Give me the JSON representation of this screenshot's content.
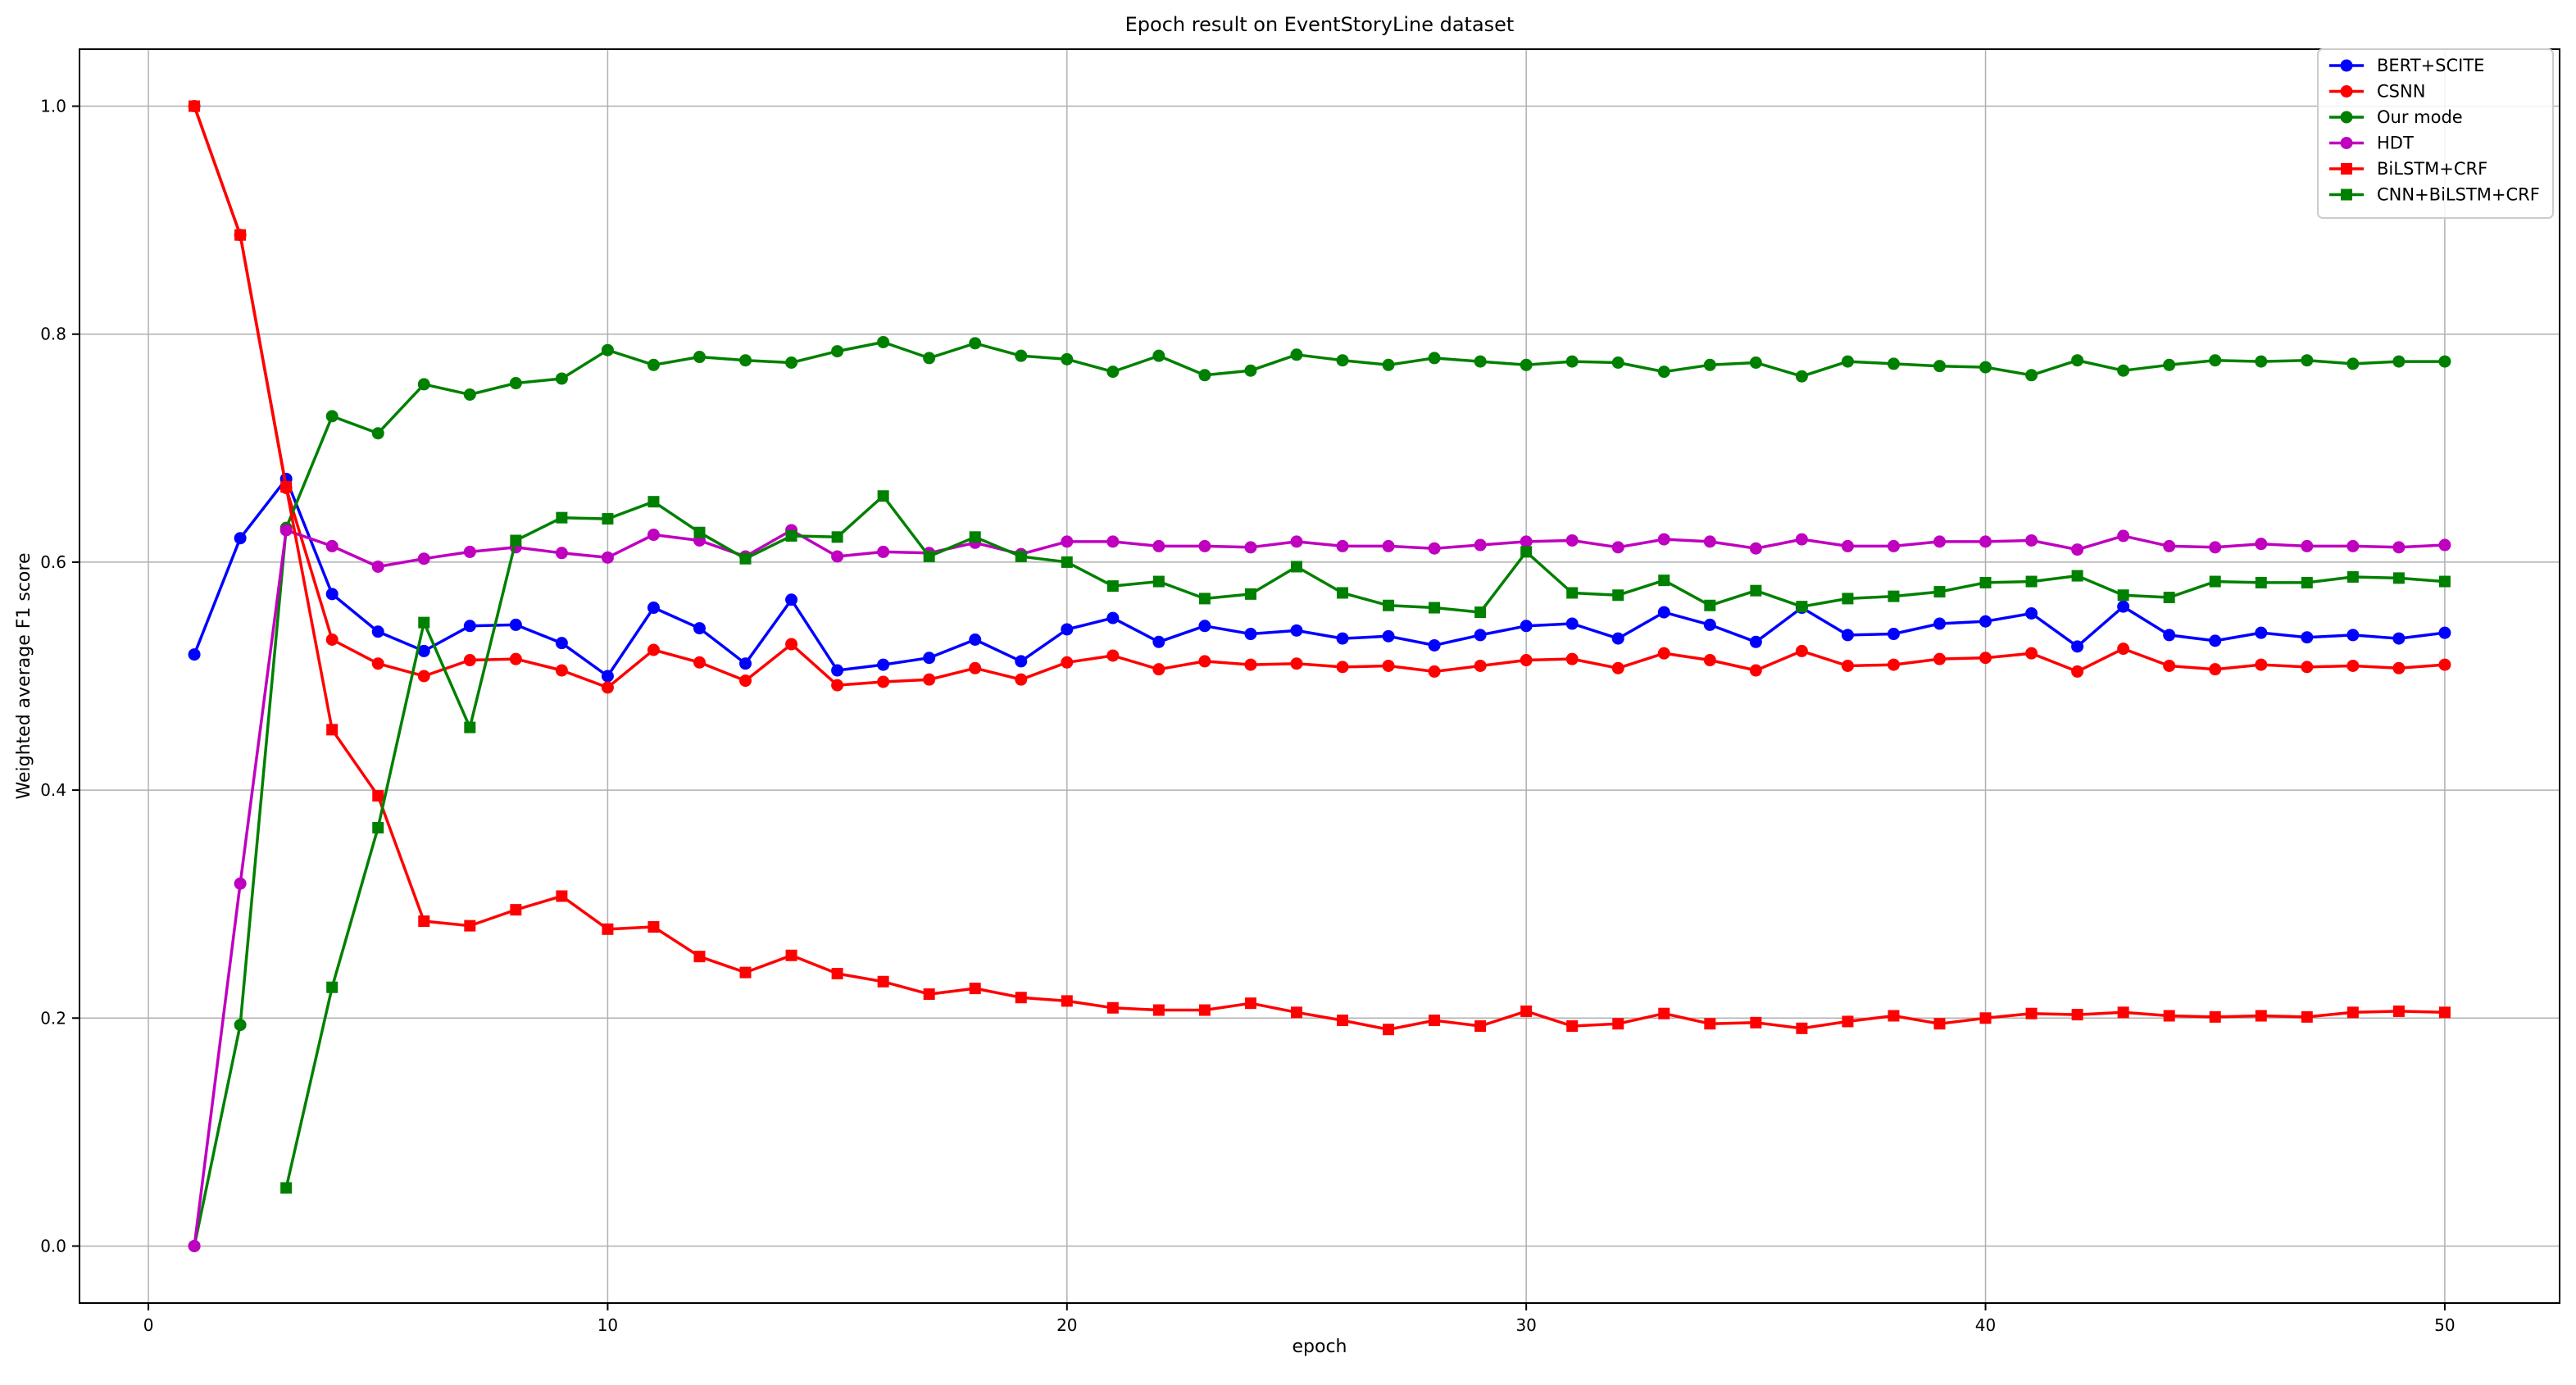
{
  "chart_data": {
    "type": "line",
    "title": "Epoch result on EventStoryLine dataset",
    "xlabel": "epoch",
    "ylabel": "Weighted average F1 score",
    "xlim": [
      -1.5,
      52.5
    ],
    "ylim": [
      -0.05,
      1.05
    ],
    "xticks": [
      0,
      10,
      20,
      30,
      40,
      50
    ],
    "yticks": [
      0.0,
      0.2,
      0.4,
      0.6,
      0.8,
      1.0
    ],
    "xtick_labels": [
      "0",
      "10",
      "20",
      "30",
      "40",
      "50"
    ],
    "ytick_labels": [
      "0.0",
      "0.2",
      "0.4",
      "0.6",
      "0.8",
      "1.0"
    ],
    "grid": true,
    "legend_position": "top-right",
    "series": [
      {
        "name": "BERT+SCITE",
        "color": "#0000ff",
        "marker": "circle",
        "x_start": 1,
        "values": [
          0.519,
          0.621,
          0.673,
          0.572,
          0.539,
          0.522,
          0.544,
          0.545,
          0.529,
          0.5,
          0.56,
          0.542,
          0.511,
          0.567,
          0.505,
          0.51,
          0.516,
          0.532,
          0.513,
          0.541,
          0.551,
          0.53,
          0.544,
          0.537,
          0.54,
          0.533,
          0.535,
          0.527,
          0.536,
          0.544,
          0.546,
          0.533,
          0.556,
          0.545,
          0.53,
          0.56,
          0.536,
          0.537,
          0.546,
          0.548,
          0.555,
          0.526,
          0.561,
          0.536,
          0.531,
          0.538,
          0.534,
          0.536,
          0.533,
          0.538
        ]
      },
      {
        "name": "CSNN",
        "color": "#ff0000",
        "marker": "circle",
        "x_start": 1,
        "values": [
          1.0,
          0.887,
          0.665,
          0.532,
          0.511,
          0.5,
          0.514,
          0.515,
          0.505,
          0.49,
          0.523,
          0.512,
          0.496,
          0.528,
          0.492,
          0.495,
          0.497,
          0.507,
          0.497,
          0.512,
          0.518,
          0.506,
          0.513,
          0.51,
          0.511,
          0.508,
          0.509,
          0.504,
          0.509,
          0.514,
          0.515,
          0.507,
          0.52,
          0.514,
          0.505,
          0.522,
          0.509,
          0.51,
          0.515,
          0.516,
          0.52,
          0.504,
          0.524,
          0.509,
          0.506,
          0.51,
          0.508,
          0.509,
          0.507,
          0.51
        ]
      },
      {
        "name": "Our mode",
        "color": "#008000",
        "marker": "circle",
        "x_start": 1,
        "values": [
          0.0,
          0.194,
          0.63,
          0.728,
          0.713,
          0.756,
          0.747,
          0.757,
          0.761,
          0.786,
          0.773,
          0.78,
          0.777,
          0.775,
          0.785,
          0.793,
          0.779,
          0.792,
          0.781,
          0.778,
          0.767,
          0.781,
          0.764,
          0.768,
          0.782,
          0.777,
          0.773,
          0.779,
          0.776,
          0.773,
          0.776,
          0.775,
          0.767,
          0.773,
          0.775,
          0.763,
          0.776,
          0.774,
          0.772,
          0.771,
          0.764,
          0.777,
          0.768,
          0.773,
          0.777,
          0.776,
          0.777,
          0.774,
          0.776,
          0.776
        ]
      },
      {
        "name": "HDT",
        "color": "#bf00bf",
        "marker": "circle",
        "x_start": 1,
        "values": [
          0.0,
          0.318,
          0.628,
          0.614,
          0.596,
          0.603,
          0.609,
          0.613,
          0.608,
          0.604,
          0.624,
          0.619,
          0.605,
          0.628,
          0.605,
          0.609,
          0.608,
          0.617,
          0.607,
          0.618,
          0.618,
          0.614,
          0.614,
          0.613,
          0.618,
          0.614,
          0.614,
          0.612,
          0.615,
          0.618,
          0.619,
          0.613,
          0.62,
          0.618,
          0.612,
          0.62,
          0.614,
          0.614,
          0.618,
          0.618,
          0.619,
          0.611,
          0.623,
          0.614,
          0.613,
          0.616,
          0.614,
          0.614,
          0.613,
          0.615
        ]
      },
      {
        "name": "BiLSTM+CRF",
        "color": "#ff0000",
        "marker": "square",
        "x_start": 1,
        "values": [
          1.0,
          0.887,
          0.666,
          0.453,
          0.395,
          0.285,
          0.281,
          0.295,
          0.307,
          0.278,
          0.28,
          0.254,
          0.24,
          0.255,
          0.239,
          0.232,
          0.221,
          0.226,
          0.218,
          0.215,
          0.209,
          0.207,
          0.207,
          0.213,
          0.205,
          0.198,
          0.19,
          0.198,
          0.193,
          0.206,
          0.193,
          0.195,
          0.204,
          0.195,
          0.196,
          0.191,
          0.197,
          0.202,
          0.195,
          0.2,
          0.204,
          0.203,
          0.205,
          0.202,
          0.201,
          0.202,
          0.201,
          0.205,
          0.206,
          0.205
        ]
      },
      {
        "name": "CNN+BiLSTM+CRF",
        "color": "#008000",
        "marker": "square",
        "x_start": 3,
        "values": [
          0.051,
          0.227,
          0.367,
          0.547,
          0.455,
          0.619,
          0.639,
          0.638,
          0.653,
          0.626,
          0.603,
          0.623,
          0.622,
          0.658,
          0.605,
          0.622,
          0.605,
          0.6,
          0.579,
          0.583,
          0.568,
          0.572,
          0.596,
          0.573,
          0.562,
          0.56,
          0.556,
          0.609,
          0.573,
          0.571,
          0.584,
          0.562,
          0.575,
          0.561,
          0.568,
          0.57,
          0.574,
          0.582,
          0.583,
          0.588,
          0.571,
          0.569,
          0.583,
          0.582,
          0.582,
          0.587,
          0.586,
          0.583
        ]
      }
    ]
  }
}
